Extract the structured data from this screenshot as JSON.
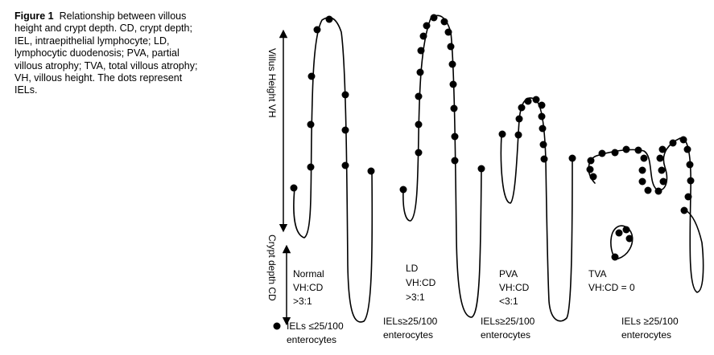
{
  "caption": {
    "label": "Figure 1",
    "text": "Relationship between villous height and crypt depth. CD, crypt depth; IEL, intraepithelial lymphocyte; LD, lymphocytic duodenosis; PVA, partial villous atrophy; TVA, total villous atrophy; VH, villous height. The dots represent IELs."
  },
  "axis": {
    "villus": "Villus Height VH",
    "crypt": "Crypt depth CD"
  },
  "panels": [
    {
      "name": "Normal",
      "ratio_label": "VH:CD",
      "ratio_value": ">3:1",
      "iel_legend": "IELs ≤25/100",
      "iel_unit": "enterocytes"
    },
    {
      "name": "LD",
      "ratio_label": "VH:CD",
      "ratio_value": ">3:1",
      "iel_legend": "IELs≥25/100",
      "iel_unit": "enterocytes"
    },
    {
      "name": "PVA",
      "ratio_label": "VH:CD",
      "ratio_value": "<3:1",
      "iel_legend": "IELs≥25/100",
      "iel_unit": "enterocytes"
    },
    {
      "name": "TVA",
      "ratio_label": "VH:CD = 0",
      "ratio_value": "",
      "iel_legend": "IELs ≥25/100",
      "iel_unit": "enterocytes"
    }
  ]
}
